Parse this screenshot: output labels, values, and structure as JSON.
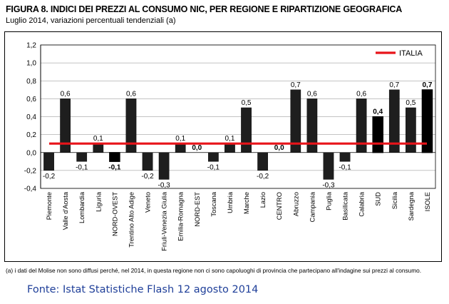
{
  "title": "FIGURA 8. INDICI DEI PREZZI AL CONSUMO NIC, PER REGIONE E RIPARTIZIONE GEOGRAFICA",
  "subtitle": "Luglio 2014, variazioni percentuali tendenziali (a)",
  "footnote": "(a) i dati del Molise non sono diffusi perché, nel 2014, in questa regione non ci sono capoluoghi di provincia che partecipano all'indagine sui prezzi al consumo.",
  "source": "Fonte: Istat Statistiche Flash 12 agosto 2014",
  "chart_data": {
    "type": "bar",
    "categories": [
      "Piemonte",
      "Valle d'Aosta",
      "Lombardia",
      "Liguria",
      "NORD-OVEST",
      "Trentino Alto Adige",
      "Veneto",
      "Friuli-Venezia Giulia",
      "Emilia-Romagna",
      "NORD-EST",
      "Toscana",
      "Umbria",
      "Marche",
      "Lazio",
      "CENTRO",
      "Abruzzo",
      "Campania",
      "Puglia",
      "Basilicata",
      "Calabria",
      "SUD",
      "Sicilia",
      "Sardegna",
      "ISOLE"
    ],
    "values": [
      -0.2,
      0.6,
      -0.1,
      0.1,
      -0.1,
      0.6,
      -0.2,
      -0.3,
      0.1,
      0.0,
      -0.1,
      0.1,
      0.5,
      -0.2,
      0.0,
      0.7,
      0.6,
      -0.3,
      -0.1,
      0.6,
      0.4,
      0.7,
      0.5,
      0.7
    ],
    "value_labels": [
      "-0,2",
      "0,6",
      "-0,1",
      "0,1",
      "-0,1",
      "0,6",
      "-0,2",
      "-0,3",
      "0,1",
      "0,0",
      "-0,1",
      "0,1",
      "0,5",
      "-0,2",
      "0,0",
      "0,7",
      "0,6",
      "-0,3",
      "-0,1",
      "0,6",
      "0,4",
      "0,7",
      "0,5",
      "0,7"
    ],
    "aggregate": [
      false,
      false,
      false,
      false,
      true,
      false,
      false,
      false,
      false,
      true,
      false,
      false,
      false,
      false,
      true,
      false,
      false,
      false,
      false,
      false,
      true,
      false,
      false,
      true
    ],
    "ylim": [
      -0.4,
      1.2
    ],
    "yticks": [
      -0.4,
      -0.2,
      0.0,
      0.2,
      0.4,
      0.6,
      0.8,
      1.0,
      1.2
    ],
    "ytick_labels": [
      "-0,4",
      "-0,2",
      "0,0",
      "0,2",
      "0,4",
      "0,6",
      "0,8",
      "1,0",
      "1,2"
    ],
    "reference_line": {
      "name": "ITALIA",
      "value": 0.1,
      "color": "#e8141a"
    },
    "colors": {
      "region_bar": "#1e1e1e",
      "aggregate_bar": "#000000",
      "grid": "#888888"
    },
    "grid": true,
    "legend_position": "top-right"
  }
}
